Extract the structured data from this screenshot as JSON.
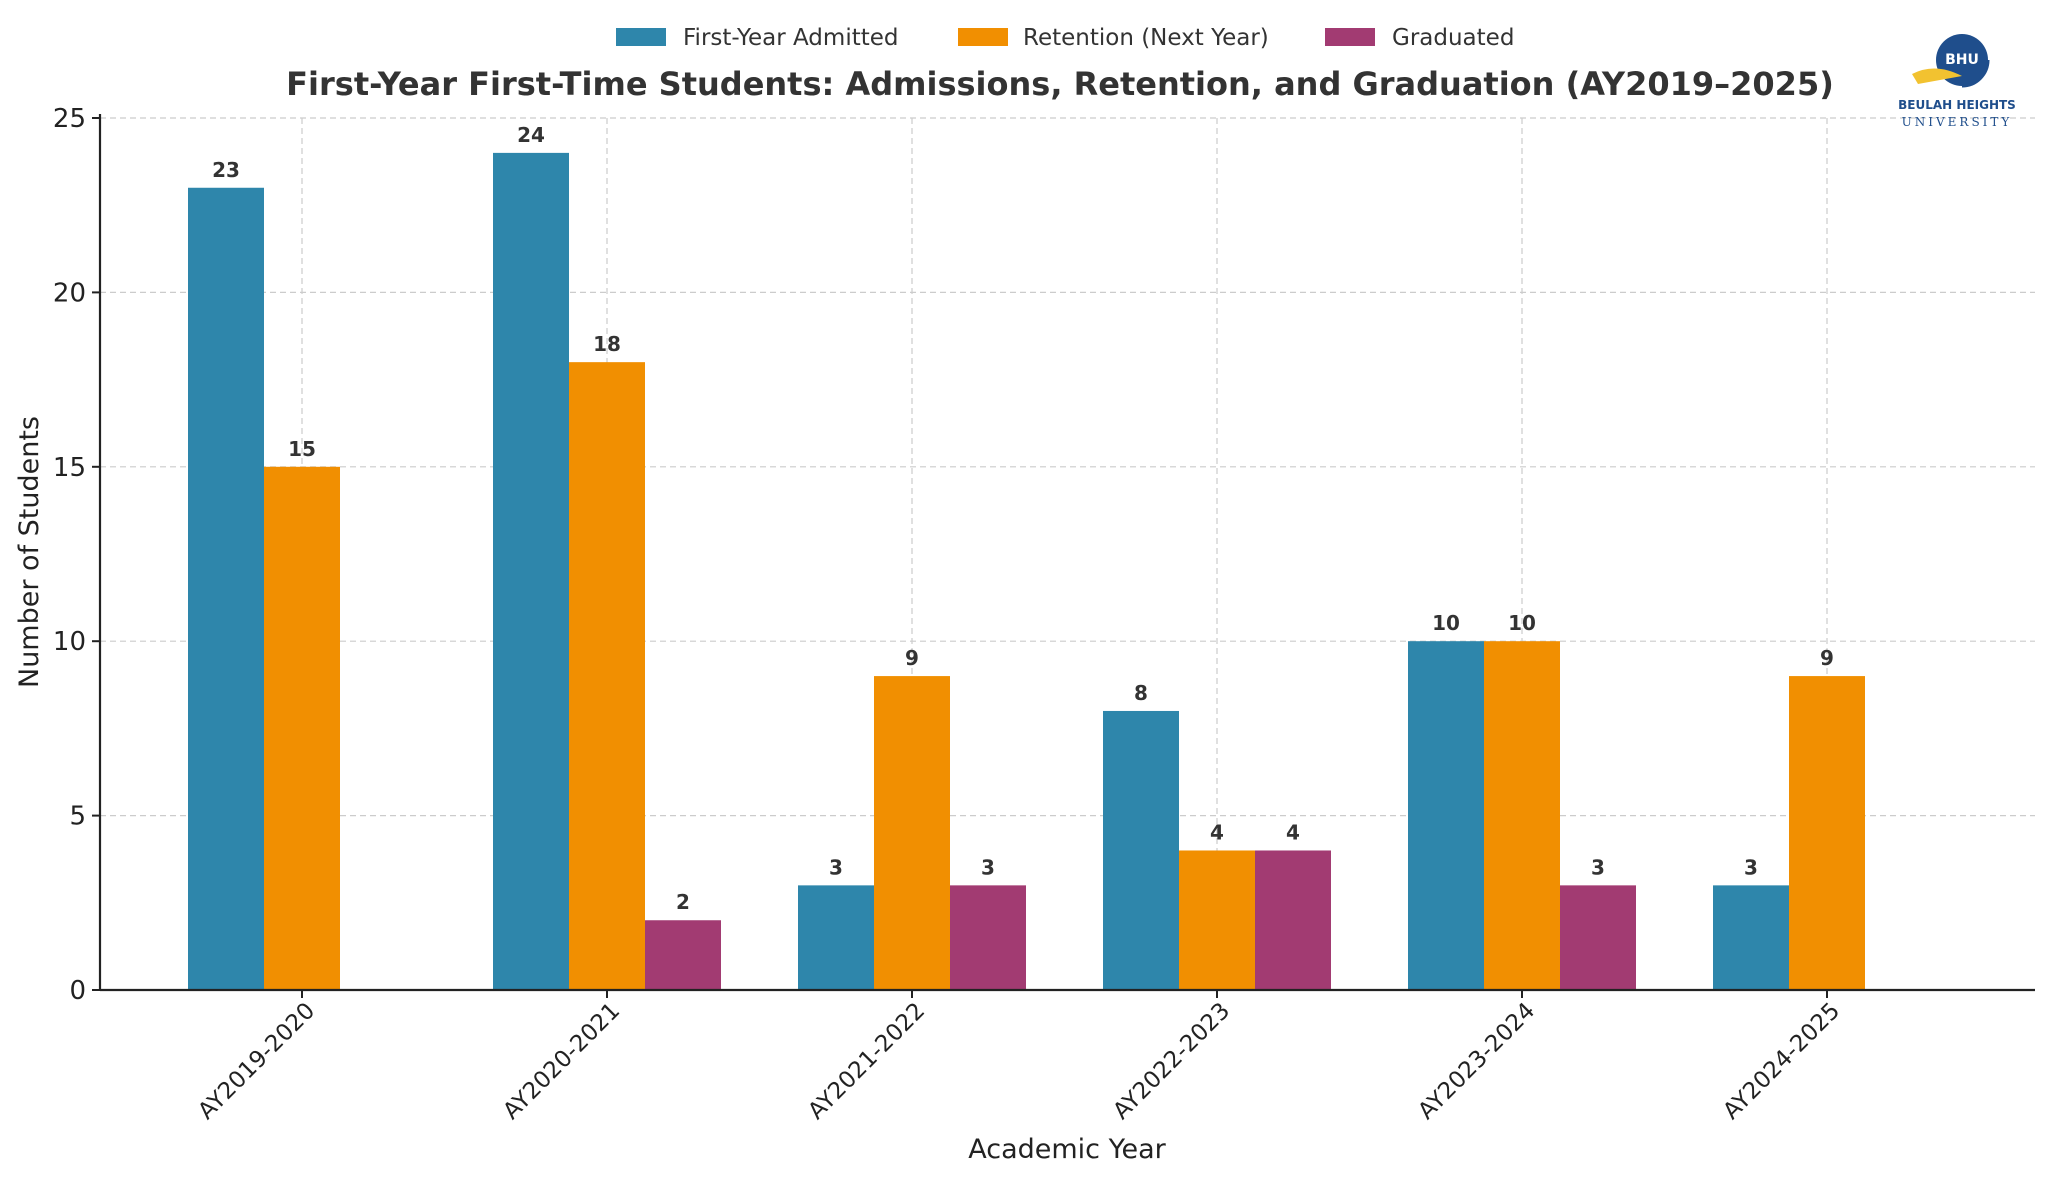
{
  "logo": {
    "monogram": "BHU",
    "name": "BEULAH HEIGHTS",
    "subtitle": "UNIVERSITY",
    "colors": {
      "navy": "#1f4e8c",
      "gold": "#f2c230"
    }
  },
  "chart_data": {
    "type": "bar",
    "title": "First-Year First-Time Students: Admissions, Retention, and Graduation (AY2019–2025)",
    "xlabel": "Academic Year",
    "ylabel": "Number of Students",
    "ylim": [
      0,
      25
    ],
    "yticks": [
      0,
      5,
      10,
      15,
      20,
      25
    ],
    "grid": true,
    "legend_position": "top-center",
    "categories": [
      "AY2019-2020",
      "AY2020-2021",
      "AY2021-2022",
      "AY2022-2023",
      "AY2023-2024",
      "AY2024-2025"
    ],
    "series": [
      {
        "name": "First-Year Admitted",
        "color": "#2e86ab",
        "values": [
          23,
          24,
          3,
          8,
          10,
          3
        ]
      },
      {
        "name": "Retention (Next Year)",
        "color": "#f18f01",
        "values": [
          15,
          18,
          9,
          4,
          10,
          9
        ]
      },
      {
        "name": "Graduated",
        "color": "#a23b72",
        "values": [
          0,
          2,
          3,
          4,
          3,
          0
        ]
      }
    ]
  }
}
